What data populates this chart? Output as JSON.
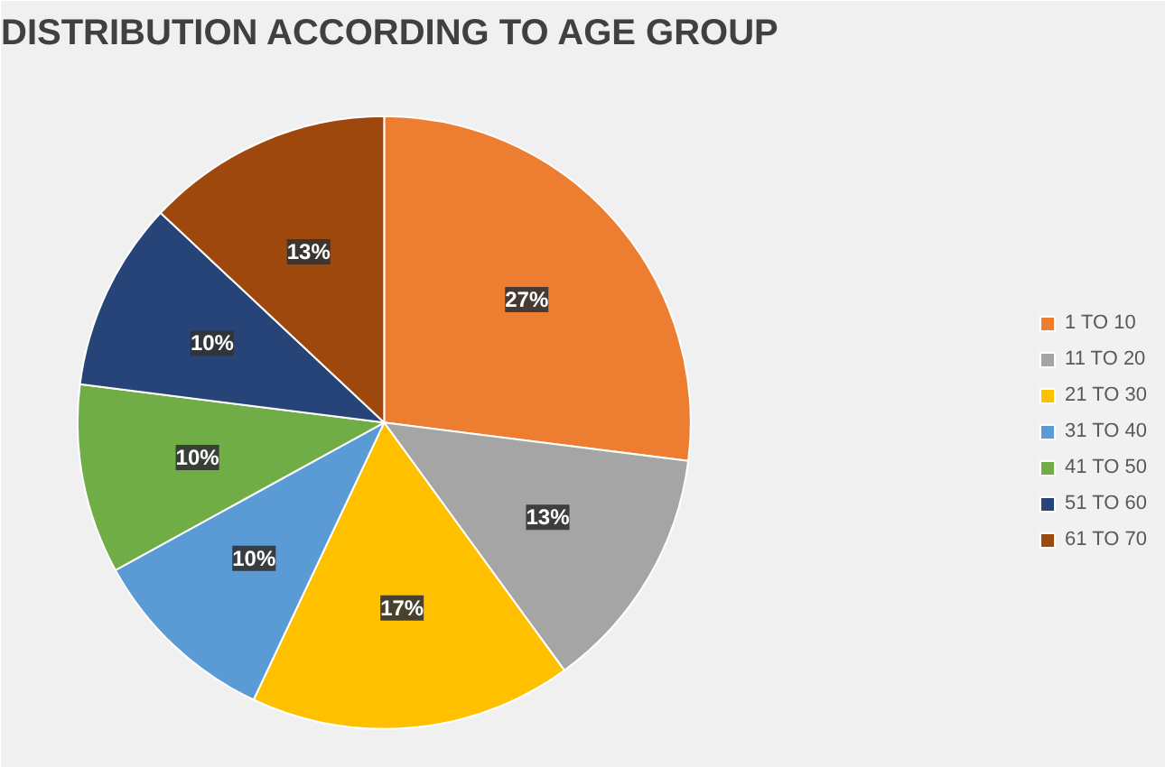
{
  "chart_data": {
    "type": "pie",
    "title": "DISTRIBUTION ACCORDING TO AGE GROUP",
    "categories": [
      null,
      "1 TO 10",
      "11 TO 20",
      "21 TO 30",
      "31 TO 40",
      "41 TO 50",
      "51 TO 60",
      "61 TO 70"
    ],
    "values": [
      0,
      27,
      13,
      17,
      10,
      10,
      10,
      13
    ],
    "colors": [
      "#4472c4",
      "#ed7d31",
      "#a5a5a5",
      "#ffc000",
      "#5b9bd5",
      "#70ad47",
      "#264478",
      "#9e480e"
    ],
    "value_labels": [
      null,
      "27%",
      "13%",
      "17%",
      "10%",
      "10%",
      "10%",
      "13%"
    ],
    "legend": "right"
  }
}
